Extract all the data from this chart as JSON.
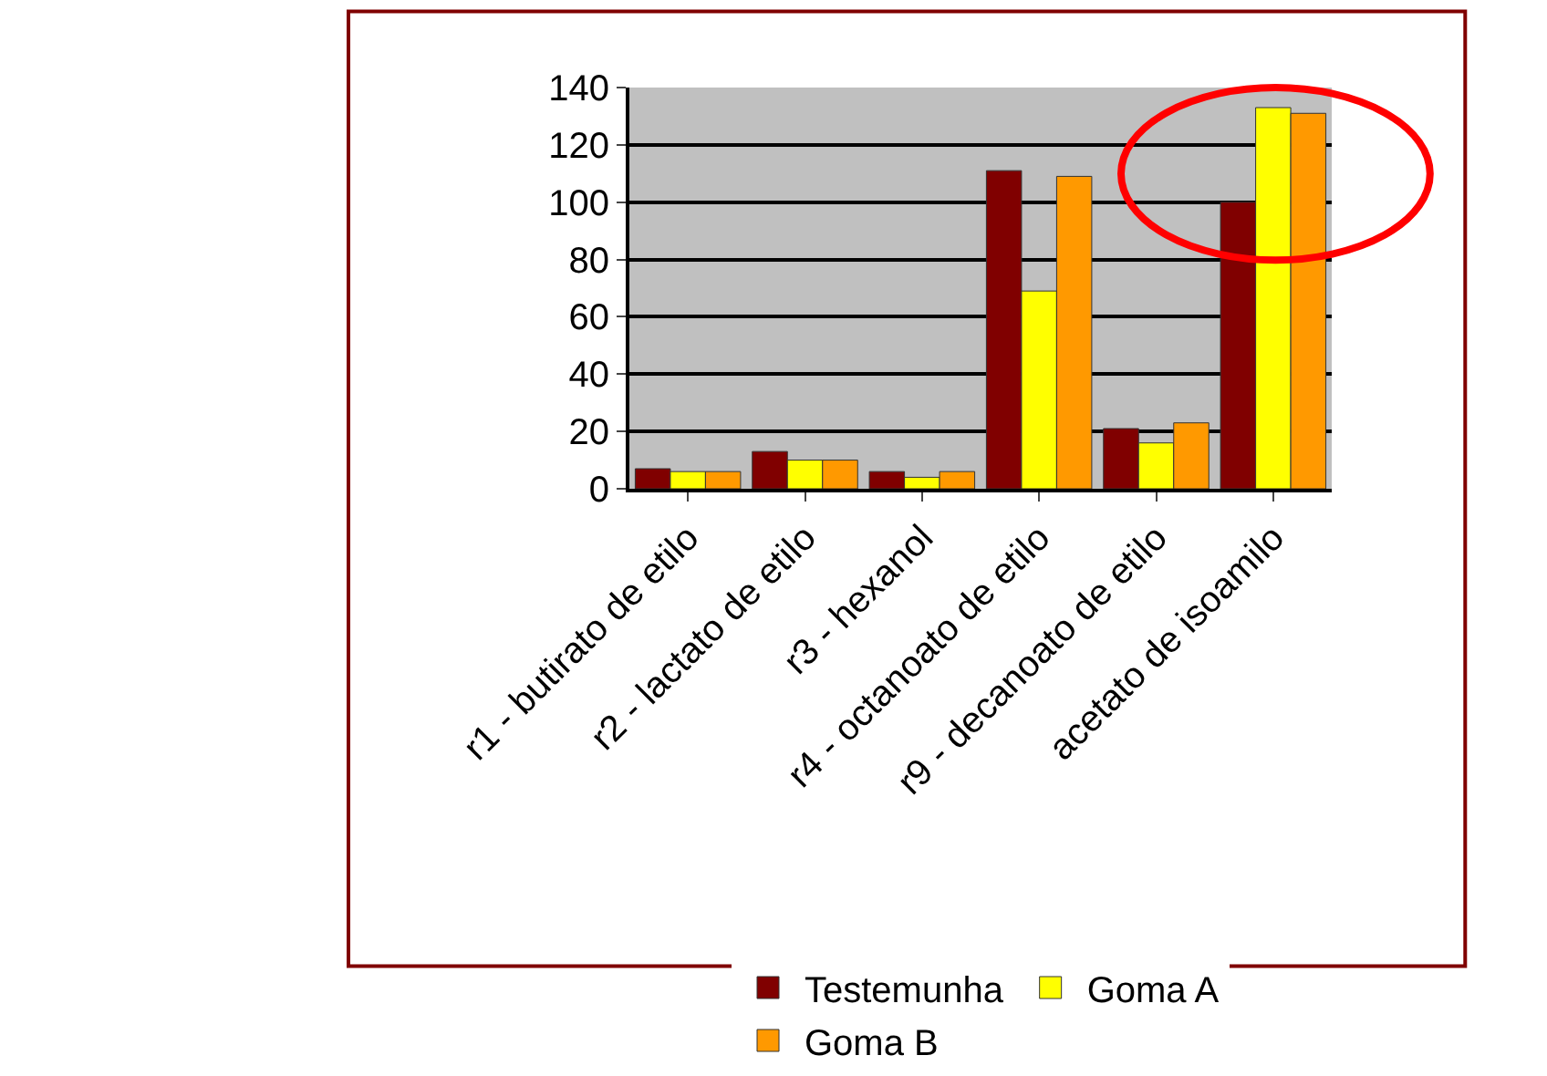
{
  "chart_data": {
    "type": "bar",
    "categories": [
      "r1 - butirato de etilo",
      "r2 - lactato de etilo",
      "r3 - hexanol",
      "r4 - octanoato de etilo",
      "r9 - decanoato de etilo",
      "acetato de isoamilo"
    ],
    "series": [
      {
        "name": "Testemunha",
        "color": "#800000",
        "values": [
          7,
          13,
          6,
          111,
          21,
          100
        ]
      },
      {
        "name": "Goma A",
        "color": "#ffff00",
        "values": [
          6,
          10,
          4,
          69,
          16,
          133
        ]
      },
      {
        "name": "Goma B",
        "color": "#ff9900",
        "values": [
          6,
          10,
          6,
          109,
          23,
          131
        ]
      }
    ],
    "ylim": [
      0,
      140
    ],
    "yticks": [
      0,
      20,
      40,
      60,
      80,
      100,
      120,
      140
    ],
    "grid": "y",
    "legend": "bottom"
  }
}
